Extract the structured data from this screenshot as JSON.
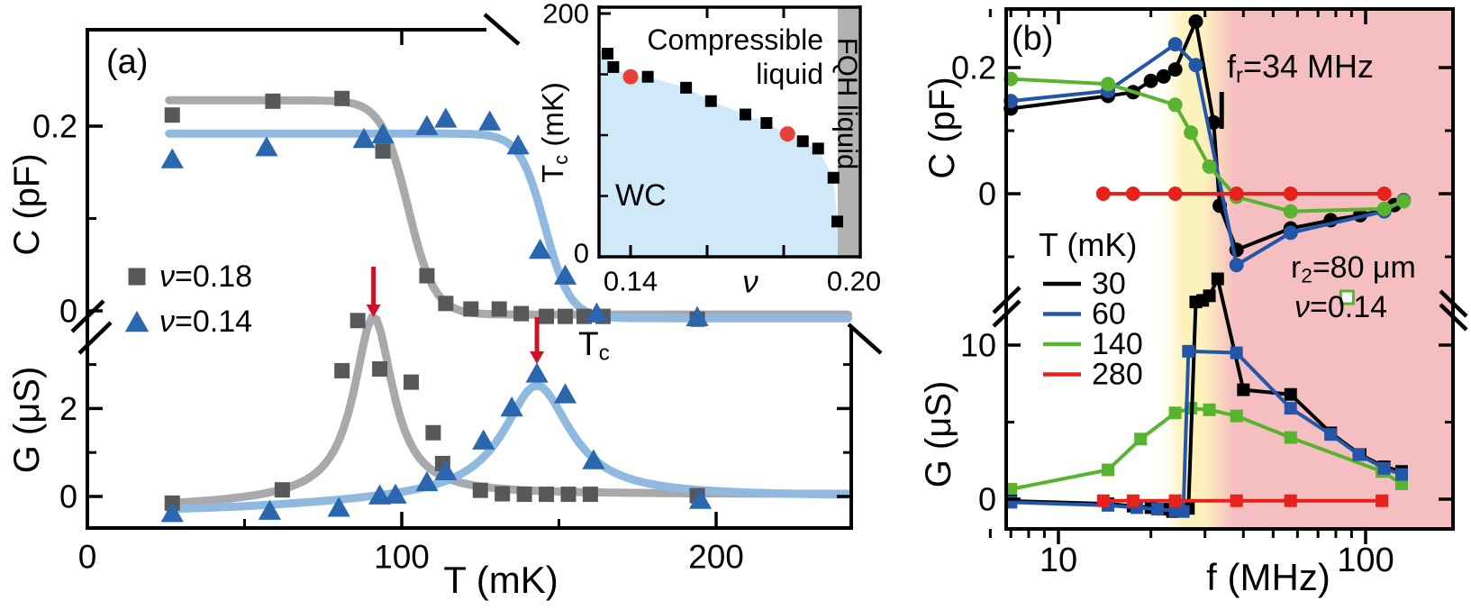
{
  "colors": {
    "axis": "#000000",
    "arrow_red": "#ce1126",
    "gray_marker": "#57585a",
    "gray_curve": "#a7a9ac",
    "blue_marker": "#2a67ae",
    "blue_curve": "#90b9e0",
    "band_yellow": "#fcf3bc",
    "band_pink": "#f5bfc1",
    "inset_wc_fill": "#cfe9f8",
    "inset_fqh_fill": "#b2b2b2"
  },
  "chart_data": [
    {
      "id": "panel_a",
      "type": "line",
      "label": "(a)",
      "xlabel": "T (mK)",
      "x_ticks": [
        {
          "v": 0,
          "label": "0"
        },
        {
          "v": 100,
          "label": "100"
        },
        {
          "v": 200,
          "label": "200"
        }
      ],
      "x_minor": [
        50,
        150
      ],
      "x_range": [
        0,
        243
      ],
      "top_tick": 100,
      "c_axis": {
        "title": "C (pF)",
        "ticks": [
          {
            "v": 0.2,
            "label": "0.2"
          },
          {
            "v": 0,
            "label": "0"
          }
        ],
        "minor": [
          0.1
        ],
        "range": [
          -0.02,
          0.305
        ]
      },
      "g_axis": {
        "title": "G (μS)",
        "ticks": [
          {
            "v": 2,
            "label": "2"
          },
          {
            "v": 0,
            "label": "0"
          }
        ],
        "minor": [
          3,
          1
        ],
        "range": [
          -0.7,
          4.2
        ]
      },
      "legend": [
        {
          "marker": "square",
          "color": "#57585a",
          "label": "ν=0.18"
        },
        {
          "marker": "triangle",
          "color": "#2a67ae",
          "label": "ν=0.14"
        }
      ],
      "tc_label": {
        "base": "T",
        "sub": "c"
      },
      "arrows_T": [
        91,
        143
      ],
      "series": [
        {
          "name": "C nu=0.18",
          "axis": "C",
          "marker": "square",
          "color": "#57585a",
          "curve_color": "#a7a9ac",
          "fit": {
            "kind": "sigmoid",
            "high": 0.228,
            "low": -0.004,
            "t0": 102,
            "w": 4.2
          },
          "points": [
            [
              27,
              0.212
            ],
            [
              59,
              0.227
            ],
            [
              81,
              0.23
            ],
            [
              94,
              0.173
            ],
            [
              108,
              0.038
            ],
            [
              114,
              0.008
            ],
            [
              122,
              0.002
            ],
            [
              131,
              0.002
            ],
            [
              138,
              -0.003
            ],
            [
              146,
              -0.006
            ],
            [
              152,
              -0.006
            ],
            [
              158,
              -0.006
            ],
            [
              164,
              -0.006
            ],
            [
              194,
              -0.009
            ]
          ]
        },
        {
          "name": "C nu=0.14",
          "axis": "C",
          "marker": "triangle",
          "color": "#2a67ae",
          "curve_color": "#90b9e0",
          "fit": {
            "kind": "sigmoid",
            "high": 0.192,
            "low": -0.008,
            "t0": 145.5,
            "w": 4
          },
          "points": [
            [
              27,
              0.163
            ],
            [
              57,
              0.176
            ],
            [
              88,
              0.185
            ],
            [
              94,
              0.19
            ],
            [
              108,
              0.199
            ],
            [
              114,
              0.207
            ],
            [
              128,
              0.204
            ],
            [
              137,
              0.178
            ],
            [
              144,
              0.065
            ],
            [
              152,
              0.037
            ],
            [
              162,
              -0.004
            ],
            [
              194,
              -0.008
            ]
          ]
        },
        {
          "name": "G nu=0.18",
          "axis": "G",
          "marker": "square",
          "color": "#57585a",
          "curve_color": "#a7a9ac",
          "fit": {
            "kind": "peak",
            "base0": -0.25,
            "baseAmp": 0.3,
            "baseT": 60,
            "baseW": 20,
            "A": 4.1,
            "t0": 91,
            "w": 7.5
          },
          "points": [
            [
              27,
              -0.15
            ],
            [
              62,
              0.15
            ],
            [
              81,
              2.86
            ],
            [
              86,
              4.0
            ],
            [
              93,
              2.9
            ],
            [
              103,
              2.6
            ],
            [
              110,
              1.45
            ],
            [
              113,
              0.75
            ],
            [
              125,
              0.14
            ],
            [
              132,
              0.06
            ],
            [
              139,
              0.05
            ],
            [
              146,
              0.05
            ],
            [
              153,
              0.05
            ],
            [
              160,
              0.05
            ],
            [
              194,
              0.02
            ]
          ]
        },
        {
          "name": "G nu=0.14",
          "axis": "G",
          "marker": "triangle",
          "color": "#2a67ae",
          "curve_color": "#90b9e0",
          "fit": {
            "kind": "peak",
            "base0": -0.35,
            "baseAmp": 0.35,
            "baseT": 80,
            "baseW": 25,
            "A": 2.55,
            "t0": 143,
            "w": 13
          },
          "points": [
            [
              27,
              -0.4
            ],
            [
              58,
              -0.35
            ],
            [
              80,
              -0.28
            ],
            [
              93,
              0.0
            ],
            [
              98,
              0.02
            ],
            [
              108,
              0.3
            ],
            [
              114,
              0.55
            ],
            [
              126,
              1.25
            ],
            [
              135,
              2.0
            ],
            [
              143,
              2.77
            ],
            [
              152,
              2.3
            ],
            [
              161,
              0.8
            ],
            [
              195,
              -0.1
            ]
          ]
        }
      ]
    },
    {
      "id": "inset",
      "type": "scatter",
      "xlabel": "ν",
      "ylabel": {
        "base": "T",
        "sub": "c",
        "suffix": " (mK)"
      },
      "x_ticks": [
        {
          "v": 0.14,
          "label": "0.14"
        },
        {
          "v": 0.2,
          "label": "0.20"
        }
      ],
      "x_minor": [
        0.16,
        0.18
      ],
      "y_ticks": [
        {
          "v": 200,
          "label": "200"
        },
        {
          "v": 0,
          "label": "0"
        }
      ],
      "y_minor": [
        150,
        100,
        50
      ],
      "regions": {
        "wc_label": "WC",
        "compressible_line1": "Compressible",
        "compressible_line2": "liquid",
        "fqh_label": "FQH liquid",
        "fqh_nu_start": 0.1941
      },
      "points": {
        "nu": [
          0.134,
          0.1355,
          0.14,
          0.1445,
          0.1545,
          0.161,
          0.17,
          0.1755,
          0.181,
          0.185,
          0.189,
          0.193,
          0.194
        ],
        "Tc": [
          167,
          156,
          148,
          148,
          139,
          128,
          117,
          110,
          101,
          95,
          89,
          65,
          29
        ],
        "red_indices": [
          2,
          8
        ]
      }
    },
    {
      "id": "panel_b",
      "type": "line",
      "label": "(b)",
      "xscale": "log",
      "xlabel": "f (MHz)",
      "x_ticks": [
        {
          "v": 10,
          "label": "10"
        },
        {
          "v": 100,
          "label": "100"
        }
      ],
      "x_minor": [
        6,
        7,
        8,
        9,
        20,
        30,
        40,
        50,
        60,
        70,
        80,
        90
      ],
      "c_axis": {
        "title": "C (pF)",
        "ticks": [
          {
            "v": 0.2,
            "label": "0.2"
          },
          {
            "v": 0,
            "label": "0"
          }
        ],
        "minor": [
          0.1,
          -0.1
        ]
      },
      "g_axis": {
        "title": "G (μS)",
        "ticks": [
          {
            "v": 10,
            "label": "10"
          },
          {
            "v": 0,
            "label": "0"
          }
        ],
        "minor": [
          5
        ]
      },
      "legend_title": "T (mK)",
      "legend": [
        {
          "label": "30",
          "color": "#000000"
        },
        {
          "label": "60",
          "color": "#2356a8"
        },
        {
          "label": "140",
          "color": "#58b42f"
        },
        {
          "label": "280",
          "color": "#e8211d"
        }
      ],
      "annotations": {
        "fr": {
          "base": "f",
          "sub": "r",
          "suffix": "=34 MHz",
          "f": 34
        },
        "r2": {
          "base": "r",
          "sub": "2",
          "suffix": "=80 μm"
        },
        "nu": {
          "base": "ν",
          "suffix": "=0.14"
        },
        "stray_marker": {
          "f": 87,
          "shape": "open-square",
          "color": "#58b42f"
        }
      },
      "bands": {
        "yellow_from": 25.5,
        "yellow_to": 34,
        "pink_to": 192
      },
      "c_series": [
        {
          "T": "30",
          "color": "#000000",
          "points": [
            [
              7,
              0.135
            ],
            [
              14.5,
              0.155
            ],
            [
              17.5,
              0.161
            ],
            [
              20,
              0.179
            ],
            [
              22,
              0.186
            ],
            [
              24,
              0.197
            ],
            [
              28,
              0.273
            ],
            [
              32,
              0.113
            ],
            [
              33.5,
              -0.019
            ],
            [
              38,
              -0.089
            ],
            [
              57,
              -0.055
            ],
            [
              77,
              -0.042
            ],
            [
              96,
              -0.034
            ],
            [
              115,
              -0.026
            ],
            [
              124,
              -0.018
            ]
          ]
        },
        {
          "T": "60",
          "color": "#2356a8",
          "points": [
            [
              7,
              0.147
            ],
            [
              14.5,
              0.163
            ],
            [
              24,
              0.237
            ],
            [
              28,
              0.204
            ],
            [
              38,
              -0.113
            ],
            [
              57,
              -0.062
            ],
            [
              115,
              -0.028
            ],
            [
              133,
              -0.01
            ]
          ]
        },
        {
          "T": "140",
          "color": "#58b42f",
          "points": [
            [
              7,
              0.182
            ],
            [
              14.5,
              0.174
            ],
            [
              24,
              0.141
            ],
            [
              27,
              0.097
            ],
            [
              31,
              0.043
            ],
            [
              38,
              -0.005
            ],
            [
              57,
              -0.028
            ],
            [
              115,
              -0.024
            ],
            [
              133,
              -0.012
            ]
          ]
        },
        {
          "T": "280",
          "color": "#e8211d",
          "points": [
            [
              14,
              0
            ],
            [
              17.5,
              0
            ],
            [
              24,
              0
            ],
            [
              38,
              0
            ],
            [
              57,
              0
            ],
            [
              115,
              0
            ]
          ]
        }
      ],
      "g_series": [
        {
          "T": "140",
          "color": "#58b42f",
          "points": [
            [
              7,
              0.65
            ],
            [
              14.5,
              1.9
            ],
            [
              18.5,
              3.9
            ],
            [
              24,
              5.6
            ],
            [
              27,
              5.9
            ],
            [
              31,
              5.8
            ],
            [
              38,
              5.4
            ],
            [
              57,
              4.0
            ],
            [
              113,
              1.8
            ],
            [
              131,
              1.0
            ]
          ]
        },
        {
          "T": "30",
          "color": "#000000",
          "points": [
            [
              7,
              -0.12
            ],
            [
              14.5,
              -0.3
            ],
            [
              17.5,
              -0.45
            ],
            [
              20,
              -0.55
            ],
            [
              22,
              -0.65
            ],
            [
              23.5,
              -0.8
            ],
            [
              25,
              -0.7
            ],
            [
              26.5,
              -0.6
            ],
            [
              28,
              12.8
            ],
            [
              29.5,
              12.9
            ],
            [
              31,
              13.2
            ],
            [
              33,
              14.3
            ],
            [
              40,
              7.1
            ],
            [
              57,
              6.8
            ],
            [
              77,
              4.3
            ],
            [
              96,
              2.9
            ],
            [
              115,
              2.1
            ],
            [
              131,
              1.8
            ]
          ]
        },
        {
          "T": "60",
          "color": "#2356a8",
          "points": [
            [
              7,
              -0.2
            ],
            [
              14.5,
              -0.4
            ],
            [
              18,
              -0.55
            ],
            [
              21,
              -0.65
            ],
            [
              24,
              -0.75
            ],
            [
              25.5,
              -0.8
            ],
            [
              26.5,
              9.6
            ],
            [
              38,
              9.5
            ],
            [
              57,
              5.9
            ],
            [
              77,
              4.2
            ],
            [
              95,
              2.9
            ],
            [
              115,
              2.0
            ],
            [
              131,
              1.6
            ]
          ]
        },
        {
          "T": "280",
          "color": "#e8211d",
          "points": [
            [
              14,
              -0.1
            ],
            [
              17.5,
              -0.1
            ],
            [
              24,
              -0.1
            ],
            [
              38,
              -0.1
            ],
            [
              57,
              -0.1
            ],
            [
              113,
              -0.1
            ]
          ]
        }
      ]
    }
  ]
}
